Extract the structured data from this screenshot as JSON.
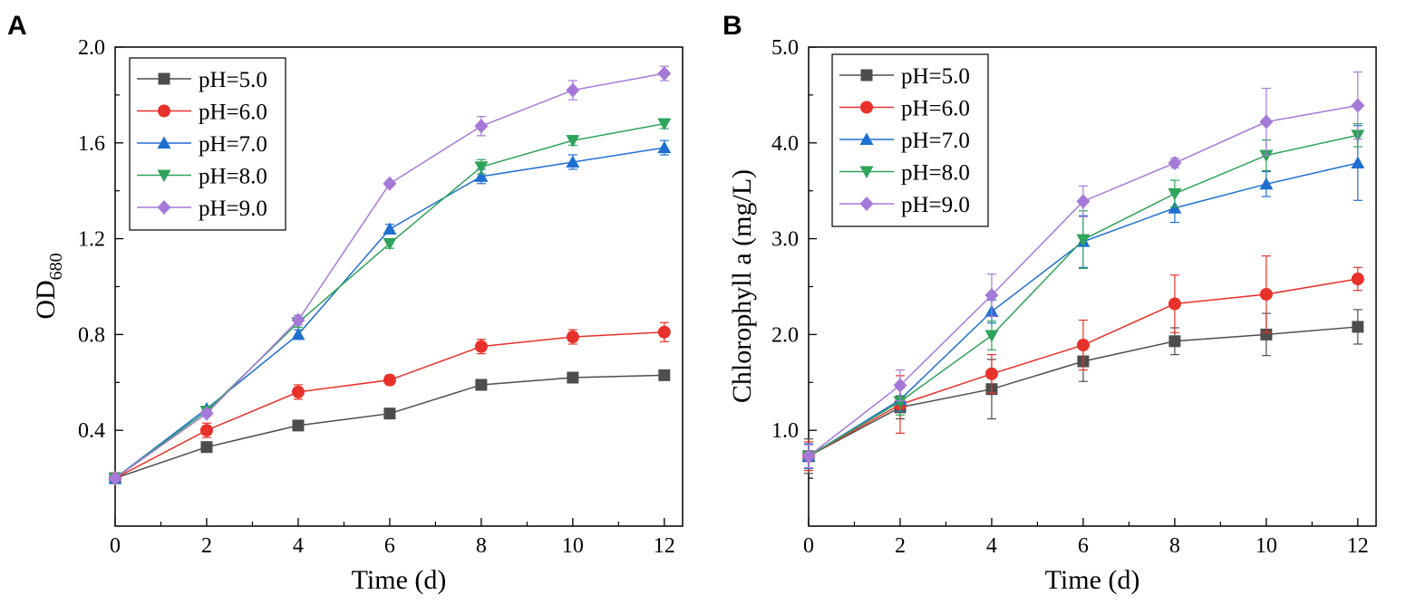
{
  "chart_data": [
    {
      "panel": "A",
      "type": "line",
      "xlabel": "Time (d)",
      "ylabel_main": "OD",
      "ylabel_sub": "680",
      "xlim": [
        0,
        12.4
      ],
      "ylim": [
        0.0,
        2.0
      ],
      "x_ticks": [
        0,
        2,
        4,
        6,
        8,
        10,
        12
      ],
      "x_tick_labels": [
        "0",
        "2",
        "4",
        "6",
        "8",
        "10",
        "12"
      ],
      "y_ticks": [
        0.4,
        0.8,
        1.2,
        1.6,
        2.0
      ],
      "y_tick_labels": [
        "0.4",
        "0.8",
        "1.2",
        "1.6",
        "2.0"
      ],
      "legend_position": "top-left",
      "x": [
        0,
        2,
        4,
        6,
        8,
        10,
        12
      ],
      "series": [
        {
          "name": "pH=5.0",
          "marker": "square",
          "color": "#4d4d4d",
          "values": [
            0.2,
            0.33,
            0.42,
            0.47,
            0.59,
            0.62,
            0.63
          ],
          "errors": [
            0.01,
            0.01,
            0.01,
            0.02,
            0.02,
            0.02,
            0.01
          ]
        },
        {
          "name": "pH=6.0",
          "marker": "circle",
          "color": "#e8312a",
          "values": [
            0.2,
            0.4,
            0.56,
            0.61,
            0.75,
            0.79,
            0.81
          ],
          "errors": [
            0.01,
            0.03,
            0.03,
            0.02,
            0.03,
            0.03,
            0.04
          ]
        },
        {
          "name": "pH=7.0",
          "marker": "triangle-up",
          "color": "#1f6fd1",
          "values": [
            0.2,
            0.49,
            0.8,
            1.24,
            1.46,
            1.52,
            1.58
          ],
          "errors": [
            0.01,
            0.01,
            0.02,
            0.02,
            0.03,
            0.03,
            0.03
          ]
        },
        {
          "name": "pH=8.0",
          "marker": "triangle-down",
          "color": "#2fa35a",
          "values": [
            0.2,
            0.48,
            0.85,
            1.18,
            1.5,
            1.61,
            1.68
          ],
          "errors": [
            0.01,
            0.01,
            0.02,
            0.02,
            0.03,
            0.02,
            0.02
          ]
        },
        {
          "name": "pH=9.0",
          "marker": "diamond",
          "color": "#a679d8",
          "values": [
            0.2,
            0.47,
            0.86,
            1.43,
            1.67,
            1.82,
            1.89
          ],
          "errors": [
            0.01,
            0.01,
            0.02,
            0.01,
            0.04,
            0.04,
            0.03
          ]
        }
      ]
    },
    {
      "panel": "B",
      "type": "line",
      "xlabel": "Time (d)",
      "ylabel_main": "Chlorophyll a (mg/L)",
      "ylabel_sub": "",
      "xlim": [
        0,
        12.4
      ],
      "ylim": [
        0.0,
        5.0
      ],
      "x_ticks": [
        0,
        2,
        4,
        6,
        8,
        10,
        12
      ],
      "x_tick_labels": [
        "0",
        "2",
        "4",
        "6",
        "8",
        "10",
        "12"
      ],
      "y_ticks": [
        1.0,
        2.0,
        3.0,
        4.0,
        5.0
      ],
      "y_tick_labels": [
        "1.0",
        "2.0",
        "3.0",
        "4.0",
        "5.0"
      ],
      "legend_position": "top-left",
      "x": [
        0,
        2,
        4,
        6,
        8,
        10,
        12
      ],
      "series": [
        {
          "name": "pH=5.0",
          "marker": "square",
          "color": "#4d4d4d",
          "values": [
            0.73,
            1.24,
            1.43,
            1.72,
            1.93,
            2.0,
            2.08
          ],
          "errors": [
            0.18,
            0.12,
            0.31,
            0.21,
            0.14,
            0.22,
            0.18
          ]
        },
        {
          "name": "pH=6.0",
          "marker": "circle",
          "color": "#e8312a",
          "values": [
            0.73,
            1.27,
            1.59,
            1.89,
            2.32,
            2.42,
            2.58
          ],
          "errors": [
            0.15,
            0.3,
            0.2,
            0.26,
            0.3,
            0.4,
            0.12
          ]
        },
        {
          "name": "pH=7.0",
          "marker": "triangle-up",
          "color": "#1f6fd1",
          "values": [
            0.73,
            1.32,
            2.24,
            2.97,
            3.32,
            3.57,
            3.79
          ],
          "errors": [
            0.13,
            0.12,
            0.12,
            0.27,
            0.15,
            0.13,
            0.39
          ]
        },
        {
          "name": "pH=8.0",
          "marker": "triangle-down",
          "color": "#2fa35a",
          "values": [
            0.73,
            1.3,
            1.99,
            2.99,
            3.47,
            3.87,
            4.08
          ],
          "errors": [
            0.12,
            0.14,
            0.15,
            0.3,
            0.14,
            0.16,
            0.12
          ]
        },
        {
          "name": "pH=9.0",
          "marker": "diamond",
          "color": "#a679d8",
          "values": [
            0.73,
            1.47,
            2.41,
            3.39,
            3.79,
            4.22,
            4.39
          ],
          "errors": [
            0.12,
            0.16,
            0.22,
            0.16,
            0.05,
            0.35,
            0.35
          ]
        }
      ]
    }
  ]
}
